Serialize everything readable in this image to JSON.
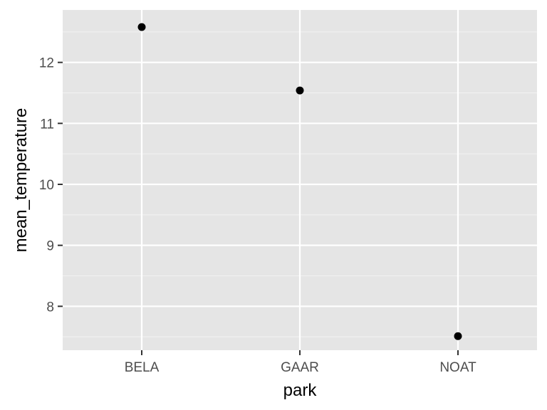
{
  "chart_data": {
    "type": "scatter",
    "title": "",
    "xlabel": "park",
    "ylabel": "mean_temperature",
    "categories": [
      "BELA",
      "GAAR",
      "NOAT"
    ],
    "values": [
      12.58,
      11.54,
      7.51
    ],
    "ylim": [
      7.28,
      12.86
    ],
    "y_ticks": [
      8,
      9,
      10,
      11,
      12
    ],
    "y_tick_labels": [
      "8",
      "9",
      "10",
      "11",
      "12"
    ],
    "grid": true,
    "legend": "none",
    "colors": {
      "panel_background": "#e5e5e5",
      "grid_major": "#ffffff",
      "grid_minor": "#f2f2f2",
      "point": "#000000",
      "tick_text": "#4d4d4d",
      "axis_title_text": "#000000"
    }
  }
}
